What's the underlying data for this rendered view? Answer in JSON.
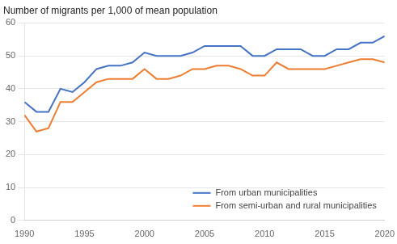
{
  "chart_data": {
    "type": "line",
    "title": "Number of migrants per 1,000 of mean population",
    "x": [
      1990,
      1991,
      1992,
      1993,
      1994,
      1995,
      1996,
      1997,
      1998,
      1999,
      2000,
      2001,
      2002,
      2003,
      2004,
      2005,
      2006,
      2007,
      2008,
      2009,
      2010,
      2011,
      2012,
      2013,
      2014,
      2015,
      2016,
      2017,
      2018,
      2019,
      2020
    ],
    "series": [
      {
        "name": "From urban municipalities",
        "color": "#4472C4",
        "values": [
          36,
          33,
          33,
          40,
          39,
          42,
          46,
          47,
          47,
          48,
          51,
          50,
          50,
          50,
          51,
          53,
          53,
          53,
          53,
          50,
          50,
          52,
          52,
          52,
          50,
          50,
          52,
          52,
          54,
          54,
          56
        ]
      },
      {
        "name": "From semi-urban and rural municipalities",
        "color": "#ED7D31",
        "values": [
          32,
          27,
          28,
          36,
          36,
          39,
          42,
          43,
          43,
          43,
          46,
          43,
          43,
          44,
          46,
          46,
          47,
          47,
          46,
          44,
          44,
          48,
          46,
          46,
          46,
          46,
          47,
          48,
          49,
          49,
          48
        ]
      }
    ],
    "xlim": [
      1990,
      2020
    ],
    "xticks": [
      1990,
      1995,
      2000,
      2005,
      2010,
      2015,
      2020
    ],
    "ylim": [
      0,
      60
    ],
    "yticks": [
      0,
      10,
      20,
      30,
      40,
      50,
      60
    ],
    "grid": "y",
    "legend": "lower right"
  }
}
